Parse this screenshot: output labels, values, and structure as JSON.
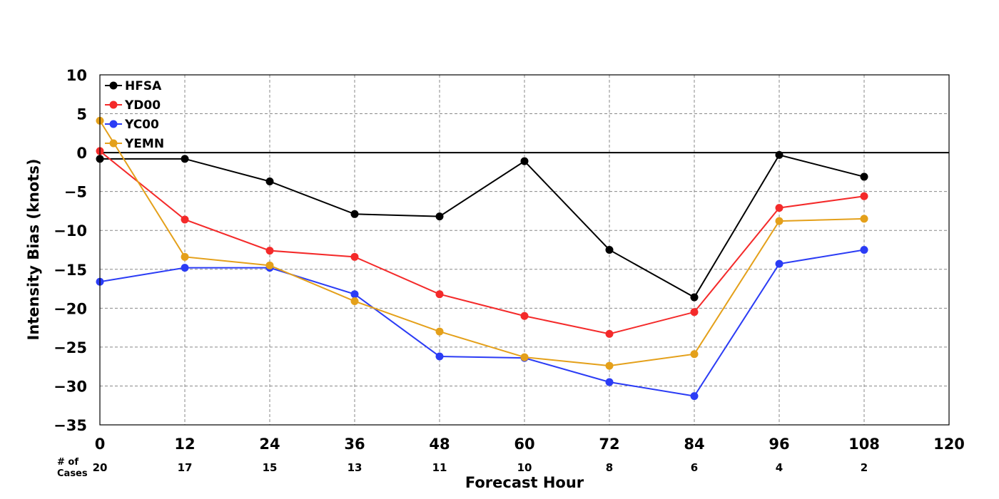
{
  "chart_data": {
    "type": "line",
    "title": "",
    "xlabel": "Forecast Hour",
    "ylabel": "Intensity Bias (knots)",
    "xlim": [
      0,
      120
    ],
    "ylim": [
      -35,
      10
    ],
    "x_ticks": [
      0,
      12,
      24,
      36,
      48,
      60,
      72,
      84,
      96,
      108,
      120
    ],
    "y_ticks": [
      10,
      5,
      0,
      -5,
      -10,
      -15,
      -20,
      -25,
      -30,
      -35
    ],
    "grid": true,
    "legend_position": "top-left",
    "x": [
      0,
      12,
      24,
      36,
      48,
      60,
      72,
      84,
      96,
      108
    ],
    "series": [
      {
        "name": "HFSA",
        "color": "#000000",
        "values": [
          -0.8,
          -0.8,
          -3.7,
          -7.9,
          -8.2,
          -1.1,
          -12.5,
          -18.6,
          -0.3,
          -3.1
        ]
      },
      {
        "name": "YD00",
        "color": "#f42a2a",
        "values": [
          0.2,
          -8.6,
          -12.6,
          -13.4,
          -18.2,
          -21.0,
          -23.3,
          -20.5,
          -7.1,
          -5.6
        ]
      },
      {
        "name": "YC00",
        "color": "#2b3cf5",
        "values": [
          -16.6,
          -14.8,
          -14.8,
          -18.2,
          -26.2,
          -26.4,
          -29.5,
          -31.3,
          -14.3,
          -12.5
        ]
      },
      {
        "name": "YEMN",
        "color": "#e4a01a",
        "values": [
          4.1,
          -13.4,
          -14.5,
          -19.1,
          -23.0,
          -26.3,
          -27.4,
          -25.9,
          -8.8,
          -8.5
        ]
      }
    ],
    "cases": {
      "label_line1": "# of",
      "label_line2": "Cases",
      "counts": [
        20,
        17,
        15,
        13,
        11,
        10,
        8,
        6,
        4,
        2
      ]
    }
  }
}
